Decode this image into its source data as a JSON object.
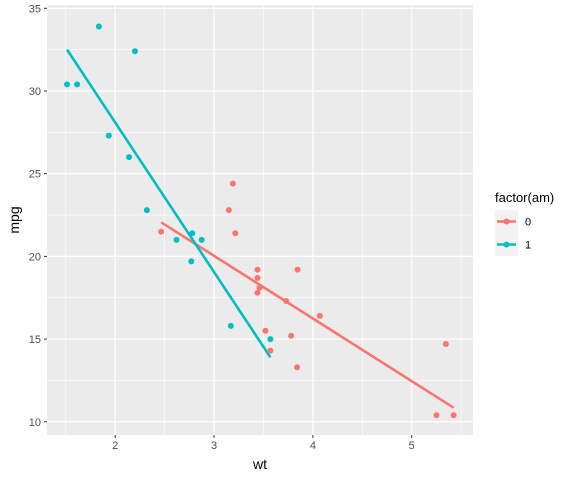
{
  "chart_data": {
    "type": "scatter",
    "title": "",
    "xlabel": "wt",
    "ylabel": "mpg",
    "xlim": [
      1.31,
      5.62
    ],
    "ylim": [
      9.2,
      35.2
    ],
    "xticks": [
      2,
      3,
      4,
      5
    ],
    "yticks": [
      10,
      15,
      20,
      25,
      30,
      35
    ],
    "grid": true,
    "legend": {
      "title": "factor(am)",
      "placement": "right"
    },
    "series": [
      {
        "name": "0",
        "color": "#F8766D",
        "points": [
          {
            "x": 2.465,
            "y": 21.5
          },
          {
            "x": 3.15,
            "y": 22.8
          },
          {
            "x": 3.19,
            "y": 24.4
          },
          {
            "x": 3.215,
            "y": 21.4
          },
          {
            "x": 3.44,
            "y": 18.7
          },
          {
            "x": 3.44,
            "y": 19.2
          },
          {
            "x": 3.44,
            "y": 17.8
          },
          {
            "x": 3.46,
            "y": 18.1
          },
          {
            "x": 3.52,
            "y": 15.5
          },
          {
            "x": 3.57,
            "y": 14.3
          },
          {
            "x": 3.73,
            "y": 17.3
          },
          {
            "x": 3.78,
            "y": 15.2
          },
          {
            "x": 3.84,
            "y": 13.3
          },
          {
            "x": 3.845,
            "y": 19.2
          },
          {
            "x": 4.07,
            "y": 16.4
          },
          {
            "x": 5.25,
            "y": 10.4
          },
          {
            "x": 5.345,
            "y": 14.7
          },
          {
            "x": 5.424,
            "y": 10.4
          }
        ],
        "fit_line": {
          "x": [
            2.465,
            5.424
          ],
          "y": [
            22.06,
            10.85
          ]
        }
      },
      {
        "name": "1",
        "color": "#00BFC4",
        "points": [
          {
            "x": 1.513,
            "y": 30.4
          },
          {
            "x": 1.615,
            "y": 30.4
          },
          {
            "x": 1.835,
            "y": 33.9
          },
          {
            "x": 1.935,
            "y": 27.3
          },
          {
            "x": 2.14,
            "y": 26.0
          },
          {
            "x": 2.2,
            "y": 32.4
          },
          {
            "x": 2.32,
            "y": 22.8
          },
          {
            "x": 2.62,
            "y": 21.0
          },
          {
            "x": 2.77,
            "y": 19.7
          },
          {
            "x": 2.78,
            "y": 21.4
          },
          {
            "x": 2.875,
            "y": 21.0
          },
          {
            "x": 3.17,
            "y": 15.8
          },
          {
            "x": 3.57,
            "y": 15.0
          }
        ],
        "fit_line": {
          "x": [
            1.513,
            3.57
          ],
          "y": [
            32.5,
            13.9
          ]
        }
      }
    ]
  }
}
